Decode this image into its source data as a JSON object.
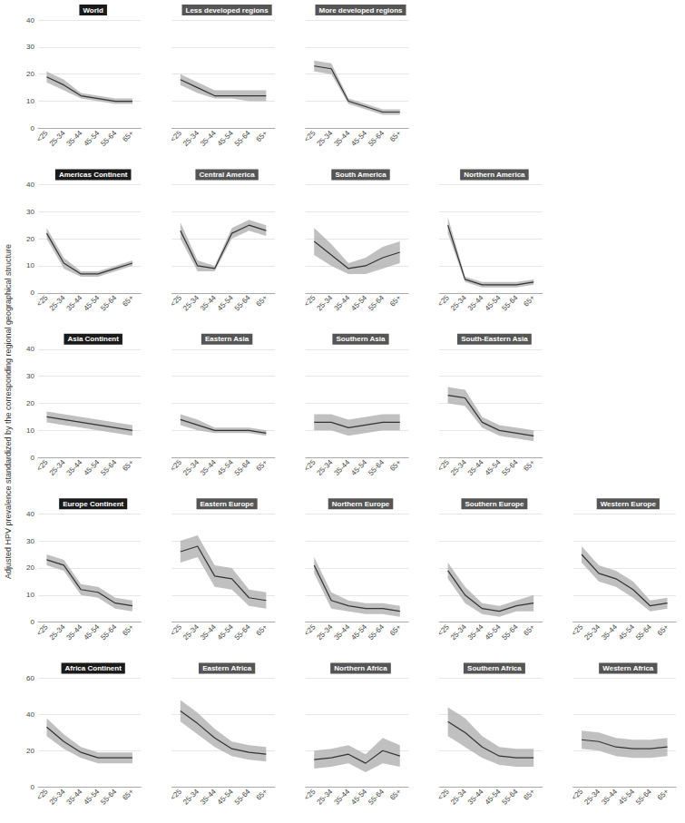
{
  "chart_data": {
    "type": "line",
    "ylabel": "Adjusted HPV prevalence standardized by the corresponding regional geographical structure",
    "categories": [
      "<25",
      "25-34",
      "35-44",
      "45-54",
      "55-64",
      "65+"
    ],
    "color": "#333333",
    "band_color": "#b0b0b0",
    "grid": true,
    "grid_color": "#cccccc",
    "rows": [
      {
        "ylim": [
          0,
          40
        ],
        "yticks": [
          0,
          10,
          20,
          30,
          40
        ],
        "panels": [
          {
            "title": "World",
            "title_color": "#1a1a1a",
            "title_text_color": "white",
            "tick_labels": true,
            "values": [
              19,
              16,
              12,
              11,
              10,
              10
            ],
            "lo": [
              17,
              14,
              11,
              10,
              9,
              9
            ],
            "hi": [
              21,
              18,
              13,
              12,
              11,
              11
            ]
          },
          {
            "title": "Less developed regions",
            "title_color": "#555555",
            "title_text_color": "white",
            "tick_labels": "x",
            "values": [
              18,
              15,
              12,
              12,
              12,
              12
            ],
            "lo": [
              16,
              13,
              11,
              11,
              10,
              10
            ],
            "hi": [
              20,
              17,
              14,
              14,
              14,
              14
            ]
          },
          {
            "title": "More developed regions",
            "title_color": "#555555",
            "title_text_color": "white",
            "tick_labels": "x",
            "values": [
              23,
              22,
              10,
              8,
              6,
              6
            ],
            "lo": [
              21,
              20,
              9,
              7,
              5,
              5
            ],
            "hi": [
              25,
              24,
              11,
              9,
              7,
              7
            ]
          }
        ]
      },
      {
        "ylim": [
          0,
          40
        ],
        "yticks": [
          0,
          10,
          20,
          30,
          40
        ],
        "panels": [
          {
            "title": "Americas Continent",
            "title_color": "#1a1a1a",
            "title_text_color": "white",
            "tick_labels": true,
            "values": [
              22,
              11,
              7,
              7,
              9,
              11
            ],
            "lo": [
              20,
              9,
              6,
              6,
              8,
              10
            ],
            "hi": [
              24,
              13,
              8,
              8,
              10,
              12
            ]
          },
          {
            "title": "Central America",
            "title_color": "#555555",
            "title_text_color": "white",
            "tick_labels": "x",
            "values": [
              23,
              10,
              9,
              22,
              25,
              23
            ],
            "lo": [
              20,
              8,
              8,
              20,
              23,
              21
            ],
            "hi": [
              26,
              12,
              10,
              24,
              27,
              25
            ]
          },
          {
            "title": "South America",
            "title_color": "#555555",
            "title_text_color": "white",
            "tick_labels": "x",
            "values": [
              19,
              14,
              9,
              10,
              13,
              15
            ],
            "lo": [
              14,
              10,
              7,
              7,
              9,
              11
            ],
            "hi": [
              24,
              18,
              11,
              13,
              17,
              19
            ]
          },
          {
            "title": "Northern America",
            "title_color": "#555555",
            "title_text_color": "white",
            "tick_labels": "x",
            "values": [
              25,
              5,
              3,
              3,
              3,
              4
            ],
            "lo": [
              22,
              4,
              2,
              2,
              2,
              3
            ],
            "hi": [
              28,
              6,
              4,
              4,
              4,
              5
            ]
          }
        ]
      },
      {
        "ylim": [
          0,
          40
        ],
        "yticks": [
          0,
          10,
          20,
          30,
          40
        ],
        "panels": [
          {
            "title": "Asia Continent",
            "title_color": "#1a1a1a",
            "title_text_color": "white",
            "tick_labels": true,
            "values": [
              15,
              14,
              13,
              12,
              11,
              10
            ],
            "lo": [
              13,
              12,
              11,
              10,
              9,
              8
            ],
            "hi": [
              17,
              16,
              15,
              14,
              13,
              12
            ]
          },
          {
            "title": "Eastern Asia",
            "title_color": "#555555",
            "title_text_color": "white",
            "tick_labels": "x",
            "values": [
              14,
              12,
              10,
              10,
              10,
              9
            ],
            "lo": [
              12,
              10,
              9,
              9,
              9,
              8
            ],
            "hi": [
              16,
              14,
              11,
              11,
              11,
              10
            ]
          },
          {
            "title": "Southern Asia",
            "title_color": "#555555",
            "title_text_color": "white",
            "tick_labels": "x",
            "values": [
              13,
              13,
              11,
              12,
              13,
              13
            ],
            "lo": [
              10,
              10,
              8,
              9,
              10,
              10
            ],
            "hi": [
              16,
              16,
              14,
              15,
              16,
              16
            ]
          },
          {
            "title": "South-Eastern Asia",
            "title_color": "#555555",
            "title_text_color": "white",
            "tick_labels": "x",
            "values": [
              23,
              22,
              13,
              10,
              9,
              8
            ],
            "lo": [
              20,
              19,
              11,
              8,
              7,
              6
            ],
            "hi": [
              26,
              25,
              15,
              12,
              11,
              10
            ]
          }
        ]
      },
      {
        "ylim": [
          0,
          40
        ],
        "yticks": [
          0,
          10,
          20,
          30,
          40
        ],
        "panels": [
          {
            "title": "Europe Continent",
            "title_color": "#1a1a1a",
            "title_text_color": "white",
            "tick_labels": true,
            "values": [
              23,
              21,
              12,
              11,
              7,
              6
            ],
            "lo": [
              21,
              19,
              10,
              9,
              5,
              4
            ],
            "hi": [
              25,
              23,
              14,
              13,
              9,
              8
            ]
          },
          {
            "title": "Eastern Europe",
            "title_color": "#555555",
            "title_text_color": "white",
            "tick_labels": "x",
            "values": [
              26,
              28,
              17,
              16,
              9,
              8
            ],
            "lo": [
              22,
              24,
              13,
              12,
              6,
              5
            ],
            "hi": [
              30,
              32,
              21,
              20,
              12,
              11
            ]
          },
          {
            "title": "Northern Europe",
            "title_color": "#555555",
            "title_text_color": "white",
            "tick_labels": "x",
            "values": [
              21,
              8,
              6,
              5,
              5,
              4
            ],
            "lo": [
              18,
              5,
              4,
              3,
              3,
              2
            ],
            "hi": [
              24,
              11,
              8,
              7,
              7,
              6
            ]
          },
          {
            "title": "Southern Europe",
            "title_color": "#555555",
            "title_text_color": "white",
            "tick_labels": "x",
            "values": [
              19,
              10,
              5,
              4,
              6,
              7
            ],
            "lo": [
              16,
              7,
              3,
              2,
              4,
              4
            ],
            "hi": [
              22,
              13,
              7,
              6,
              8,
              10
            ]
          },
          {
            "title": "Western Europe",
            "title_color": "#555555",
            "title_text_color": "white",
            "tick_labels": "x",
            "values": [
              25,
              18,
              16,
              12,
              6,
              7
            ],
            "lo": [
              22,
              15,
              13,
              9,
              4,
              5
            ],
            "hi": [
              28,
              21,
              19,
              15,
              8,
              9
            ]
          }
        ]
      },
      {
        "ylim": [
          0,
          60
        ],
        "yticks": [
          0,
          20,
          40,
          60
        ],
        "panels": [
          {
            "title": "Africa Continent",
            "title_color": "#1a1a1a",
            "title_text_color": "white",
            "tick_labels": true,
            "values": [
              33,
              25,
              19,
              16,
              16,
              16
            ],
            "lo": [
              28,
              21,
              16,
              13,
              13,
              13
            ],
            "hi": [
              38,
              29,
              22,
              19,
              19,
              19
            ]
          },
          {
            "title": "Eastern Africa",
            "title_color": "#555555",
            "title_text_color": "white",
            "tick_labels": "x",
            "values": [
              42,
              35,
              27,
              21,
              19,
              18
            ],
            "lo": [
              36,
              29,
              22,
              17,
              15,
              14
            ],
            "hi": [
              48,
              41,
              32,
              25,
              23,
              22
            ]
          },
          {
            "title": "Northern Africa",
            "title_color": "#555555",
            "title_text_color": "white",
            "tick_labels": "x",
            "values": [
              15,
              16,
              18,
              13,
              20,
              17
            ],
            "lo": [
              10,
              11,
              13,
              8,
              13,
              11
            ],
            "hi": [
              20,
              21,
              23,
              18,
              27,
              23
            ]
          },
          {
            "title": "Southern Africa",
            "title_color": "#555555",
            "title_text_color": "white",
            "tick_labels": "x",
            "values": [
              36,
              30,
              22,
              17,
              16,
              16
            ],
            "lo": [
              28,
              22,
              16,
              12,
              11,
              11
            ],
            "hi": [
              44,
              38,
              28,
              22,
              21,
              21
            ]
          },
          {
            "title": "Western Africa",
            "title_color": "#555555",
            "title_text_color": "white",
            "tick_labels": "x",
            "values": [
              26,
              25,
              22,
              21,
              21,
              22
            ],
            "lo": [
              21,
              20,
              17,
              16,
              16,
              17
            ],
            "hi": [
              31,
              30,
              27,
              26,
              26,
              27
            ]
          }
        ]
      }
    ]
  }
}
